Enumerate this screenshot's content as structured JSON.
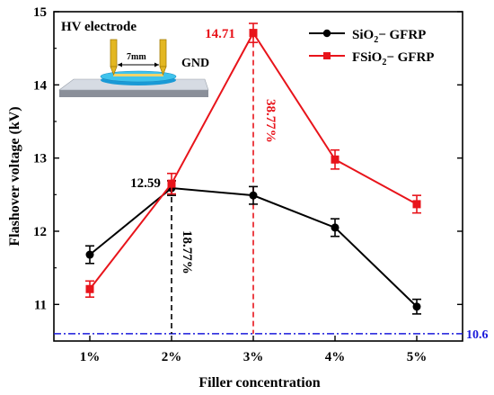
{
  "chart_data": {
    "type": "line",
    "xlabel": "Filler concentration",
    "ylabel": "Flashover voltage (kV)",
    "categories": [
      "1%",
      "2%",
      "3%",
      "4%",
      "5%"
    ],
    "ylim": [
      10.5,
      15
    ],
    "yticks": [
      "11",
      "12",
      "13",
      "14",
      "15"
    ],
    "grid": false,
    "legend_position": "top-right",
    "series": [
      {
        "name_main": "SiO",
        "name_sub": "2",
        "name_rest": "− GFRP",
        "color": "#000000",
        "marker": "circle",
        "values": [
          11.68,
          12.59,
          12.49,
          12.05,
          10.97
        ],
        "errors": [
          0.12,
          0.1,
          0.12,
          0.12,
          0.1
        ]
      },
      {
        "name_main": "FSiO",
        "name_sub": "2",
        "name_rest": "− GFRP",
        "color": "#e8141b",
        "marker": "square",
        "values": [
          11.21,
          12.65,
          14.71,
          12.98,
          12.37
        ],
        "errors": [
          0.11,
          0.14,
          0.13,
          0.13,
          0.12
        ]
      }
    ],
    "reference_line": {
      "value": 10.6,
      "label": "10.6",
      "color": "#1a1adb"
    },
    "annotations": {
      "peak_black": "12.59",
      "peak_red": "14.71",
      "pct_black": "18.77%",
      "pct_red": "38.77%"
    },
    "inset": {
      "title": "HV electrode",
      "gap_label": "7mm",
      "gnd_label": "GND"
    }
  }
}
